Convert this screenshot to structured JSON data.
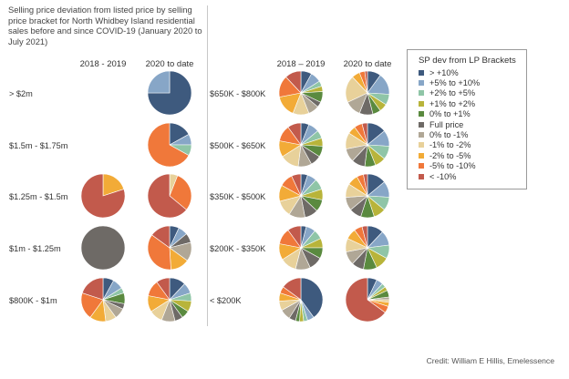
{
  "title_lines": [
    "Selling price deviation from listed price by selling",
    "price bracket for North Whidbey Island residential",
    "sales before and since COVID-19 (January 2020 to",
    "July 2021)"
  ],
  "columns": {
    "left": [
      "2018 - 2019",
      "2020 to date"
    ],
    "right": [
      "2018 – 2019",
      "2020 to date"
    ]
  },
  "legend": {
    "title": "SP dev from LP Brackets",
    "items": [
      {
        "label": "> +10%",
        "color": "#3e5a7e"
      },
      {
        "label": "+5% to +10%",
        "color": "#87a6c7"
      },
      {
        "label": "+2% to +5%",
        "color": "#8fc5a7"
      },
      {
        "label": "+1% to +2%",
        "color": "#b8b43a"
      },
      {
        "label": "0% to +1%",
        "color": "#5a8a3f"
      },
      {
        "label": "Full price",
        "color": "#6e6a66"
      },
      {
        "label": "0% to -1%",
        "color": "#b0a796"
      },
      {
        "label": "-1% to -2%",
        "color": "#e8d19a"
      },
      {
        "label": "-2% to -5%",
        "color": "#f2ab37"
      },
      {
        "label": "-5% to -10%",
        "color": "#f0783a"
      },
      {
        "label": "< -10%",
        "color": "#c25a4c"
      }
    ]
  },
  "credit": "Credit: William E Hillis, Emelessence",
  "chart_data": {
    "type": "pie",
    "categories": [
      "> +10%",
      "+5% to +10%",
      "+2% to +5%",
      "+1% to +2%",
      "0% to +1%",
      "Full price",
      "0% to -1%",
      "-1% to -2%",
      "-2% to -5%",
      "-5% to -10%",
      "< -10%"
    ],
    "groups": [
      {
        "label": "> $2m",
        "panel": "left",
        "pies": [
          {
            "period": "2018 - 2019",
            "values": null
          },
          {
            "period": "2020 to date",
            "values": [
              75,
              25,
              0,
              0,
              0,
              0,
              0,
              0,
              0,
              0,
              0
            ]
          }
        ]
      },
      {
        "label": "$1.5m - $1.75m",
        "panel": "left",
        "pies": [
          {
            "period": "2018 - 2019",
            "values": null
          },
          {
            "period": "2020 to date",
            "values": [
              17,
              8,
              8,
              0,
              0,
              0,
              0,
              0,
              0,
              67,
              0
            ]
          }
        ]
      },
      {
        "label": "$1.25m - $1.5m",
        "panel": "left",
        "pies": [
          {
            "period": "2018 - 2019",
            "values": [
              0,
              0,
              0,
              0,
              0,
              0,
              0,
              0,
              20,
              0,
              80
            ]
          },
          {
            "period": "2020 to date",
            "values": [
              0,
              0,
              0,
              0,
              0,
              0,
              0,
              6,
              0,
              30,
              64
            ]
          }
        ]
      },
      {
        "label": "$1m - $1.25m",
        "panel": "left",
        "pies": [
          {
            "period": "2018 - 2019",
            "values": [
              0,
              0,
              0,
              0,
              0,
              100,
              0,
              0,
              0,
              0,
              0
            ]
          },
          {
            "period": "2020 to date",
            "values": [
              7,
              7,
              0,
              0,
              0,
              7,
              14,
              0,
              14,
              36,
              15
            ]
          }
        ]
      },
      {
        "label": "$800K - $1m",
        "panel": "left",
        "pies": [
          {
            "period": "2018 - 2019",
            "values": [
              8,
              8,
              4,
              0,
              8,
              4,
              8,
              8,
              12,
              20,
              20
            ]
          },
          {
            "period": "2020 to date",
            "values": [
              12,
              8,
              6,
              8,
              6,
              6,
              10,
              10,
              12,
              12,
              10
            ]
          }
        ]
      },
      {
        "label": "$650K - $800K",
        "panel": "right",
        "pies": [
          {
            "period": "2018 – 2019",
            "values": [
              8,
              8,
              4,
              4,
              8,
              4,
              8,
              12,
              16,
              16,
              12
            ]
          },
          {
            "period": "2020 to date",
            "values": [
              10,
              16,
              8,
              6,
              6,
              10,
              12,
              20,
              6,
              4,
              2
            ]
          }
        ]
      },
      {
        "label": "$500K - $650K",
        "panel": "right",
        "pies": [
          {
            "period": "2018 – 2019",
            "values": [
              6,
              8,
              6,
              6,
              8,
              8,
              10,
              14,
              12,
              12,
              10
            ]
          },
          {
            "period": "2020 to date",
            "values": [
              14,
              12,
              10,
              8,
              8,
              10,
              10,
              12,
              6,
              6,
              4
            ]
          }
        ]
      },
      {
        "label": "$350K - $500K",
        "panel": "right",
        "pies": [
          {
            "period": "2018 – 2019",
            "values": [
              5,
              7,
              8,
              8,
              9,
              10,
              12,
              12,
              12,
              10,
              7
            ]
          },
          {
            "period": "2020 to date",
            "values": [
              14,
              12,
              10,
              9,
              10,
              9,
              10,
              10,
              8,
              5,
              3
            ]
          }
        ]
      },
      {
        "label": "$200K - $350K",
        "panel": "right",
        "pies": [
          {
            "period": "2018 – 2019",
            "values": [
              4,
              7,
              7,
              7,
              8,
              10,
              11,
              12,
              12,
              12,
              10
            ]
          },
          {
            "period": "2020 to date",
            "values": [
              12,
              11,
              10,
              10,
              10,
              9,
              10,
              10,
              8,
              6,
              4
            ]
          }
        ]
      },
      {
        "label": "< $200K",
        "panel": "right",
        "pies": [
          {
            "period": "2018 – 2019",
            "values": [
              40,
              5,
              3,
              3,
              3,
              5,
              8,
              7,
              6,
              5,
              15
            ]
          },
          {
            "period": "2020 to date",
            "values": [
              7,
              5,
              3,
              3,
              5,
              0,
              2,
              2,
              3,
              5,
              65
            ]
          }
        ]
      }
    ]
  }
}
